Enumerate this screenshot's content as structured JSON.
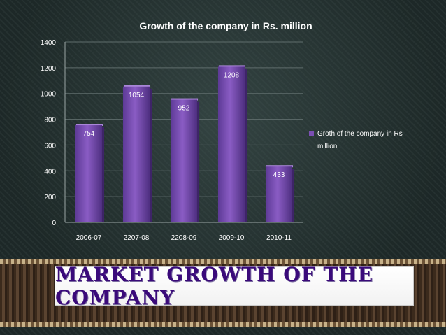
{
  "slide": {
    "title": "Market Growth of the Company"
  },
  "chart_data": {
    "type": "bar",
    "title": "Growth of the company in Rs. million",
    "categories": [
      "2006-07",
      "2207-08",
      "2208-09",
      "2009-10",
      "2010-11"
    ],
    "series": [
      {
        "name": "Groth of the company in Rs million",
        "values": [
          754,
          1054,
          952,
          1208,
          433
        ]
      }
    ],
    "data_labels": [
      "754",
      "1054",
      "952",
      "1208",
      "433"
    ],
    "y_ticks": [
      "0",
      "200",
      "400",
      "600",
      "800",
      "1000",
      "1200",
      "1400"
    ],
    "ylim": [
      0,
      1400
    ],
    "legend_position": "right",
    "grid": true,
    "bar_color": "#7b4fb3"
  }
}
